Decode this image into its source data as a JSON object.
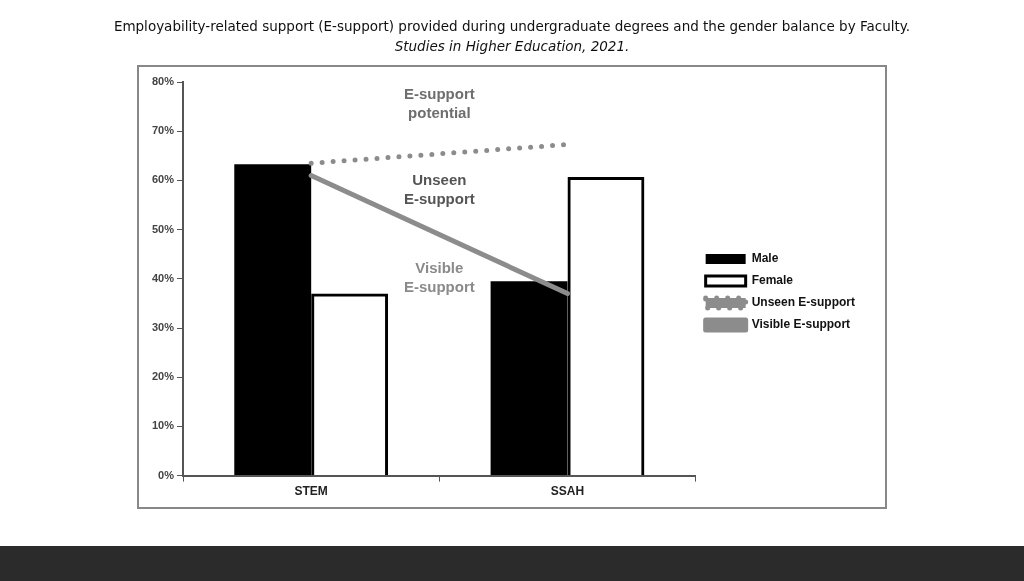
{
  "chart_data": {
    "type": "bar",
    "title": "Employability-related support (E-support) provided during undergraduate degrees and the gender balance by Faculty.",
    "subtitle": "Studies in Higher Education, 2021.",
    "categories": [
      "STEM",
      "SSAH"
    ],
    "series": [
      {
        "name": "Male",
        "color": "#000000",
        "values": [
          63.3,
          39.5
        ]
      },
      {
        "name": "Female",
        "color": "#000000",
        "values": [
          37,
          60.7
        ]
      },
      {
        "name": "Unseen E-support",
        "type": "line",
        "line_style": "dotted",
        "color": "#8c8c8c",
        "values": [
          63.5,
          67.3
        ]
      },
      {
        "name": "Visible E-support",
        "type": "line",
        "line_style": "solid",
        "color": "#8c8c8c",
        "values": [
          61,
          37
        ]
      }
    ],
    "ylim": [
      0,
      80
    ],
    "yticks": [
      {
        "value": 0,
        "label": "0%"
      },
      {
        "value": 10,
        "label": "10%"
      },
      {
        "value": 20,
        "label": "20%"
      },
      {
        "value": 30,
        "label": "30%"
      },
      {
        "value": 40,
        "label": "40%"
      },
      {
        "value": 50,
        "label": "50%"
      },
      {
        "value": 60,
        "label": "60%"
      },
      {
        "value": 70,
        "label": "70%"
      },
      {
        "value": 80,
        "label": "80%"
      }
    ],
    "grid": false,
    "legend": "right",
    "marker": "none",
    "annotations": [
      "E-support potential",
      "Unseen E-support",
      "Visible E-support"
    ]
  }
}
